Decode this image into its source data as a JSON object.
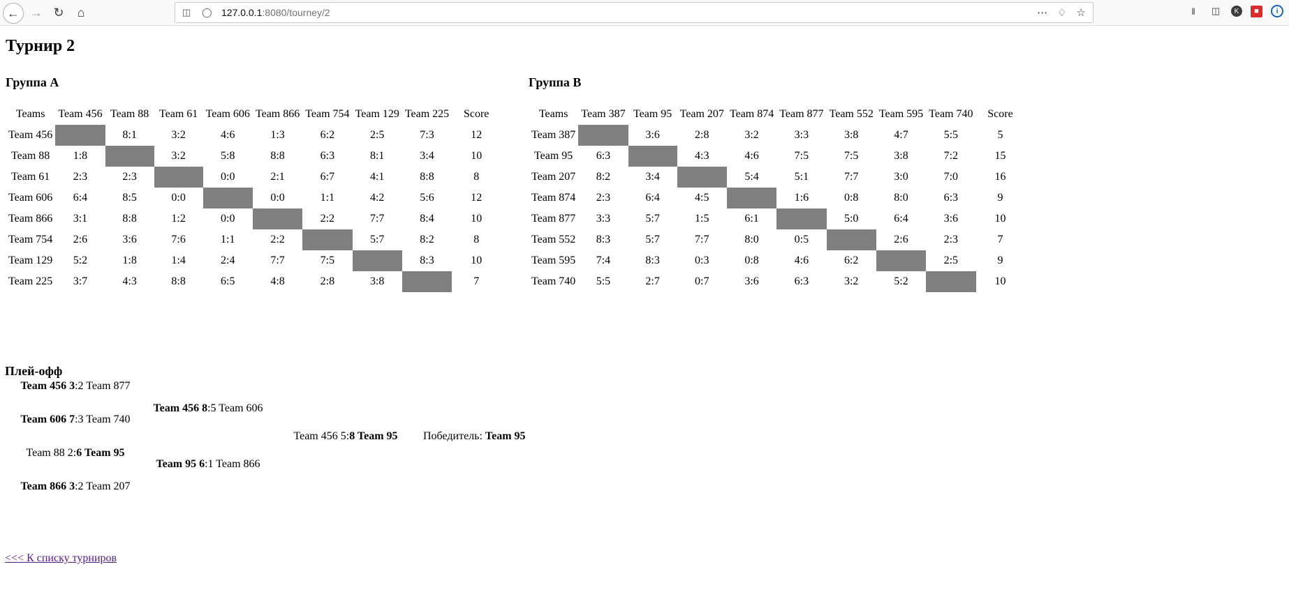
{
  "browser": {
    "url_host": "127.0.0.1",
    "url_rest": ":8080/tourney/2"
  },
  "page": {
    "title": "Турнир 2",
    "playoff_title": "Плей-офф",
    "back_link": "<<< К списку турниров"
  },
  "groups": [
    {
      "title": "Группа A",
      "header": [
        "Teams",
        "Team 456",
        "Team 88",
        "Team 61",
        "Team 606",
        "Team 866",
        "Team 754",
        "Team 129",
        "Team 225",
        "Score"
      ],
      "rows": [
        {
          "team": "Team 456",
          "cells": [
            "",
            "8:1",
            "3:2",
            "4:6",
            "1:3",
            "6:2",
            "2:5",
            "7:3"
          ],
          "score": "12"
        },
        {
          "team": "Team 88",
          "cells": [
            "1:8",
            "",
            "3:2",
            "5:8",
            "8:8",
            "6:3",
            "8:1",
            "3:4"
          ],
          "score": "10"
        },
        {
          "team": "Team 61",
          "cells": [
            "2:3",
            "2:3",
            "",
            "0:0",
            "2:1",
            "6:7",
            "4:1",
            "8:8"
          ],
          "score": "8"
        },
        {
          "team": "Team 606",
          "cells": [
            "6:4",
            "8:5",
            "0:0",
            "",
            "0:0",
            "1:1",
            "4:2",
            "5:6"
          ],
          "score": "12"
        },
        {
          "team": "Team 866",
          "cells": [
            "3:1",
            "8:8",
            "1:2",
            "0:0",
            "",
            "2:2",
            "7:7",
            "8:4"
          ],
          "score": "10"
        },
        {
          "team": "Team 754",
          "cells": [
            "2:6",
            "3:6",
            "7:6",
            "1:1",
            "2:2",
            "",
            "5:7",
            "8:2"
          ],
          "score": "8"
        },
        {
          "team": "Team 129",
          "cells": [
            "5:2",
            "1:8",
            "1:4",
            "2:4",
            "7:7",
            "7:5",
            "",
            "8:3"
          ],
          "score": "10"
        },
        {
          "team": "Team 225",
          "cells": [
            "3:7",
            "4:3",
            "8:8",
            "6:5",
            "4:8",
            "2:8",
            "3:8",
            ""
          ],
          "score": "7"
        }
      ]
    },
    {
      "title": "Группа B",
      "header": [
        "Teams",
        "Team 387",
        "Team 95",
        "Team 207",
        "Team 874",
        "Team 877",
        "Team 552",
        "Team 595",
        "Team 740",
        "Score"
      ],
      "rows": [
        {
          "team": "Team 387",
          "cells": [
            "",
            "3:6",
            "2:8",
            "3:2",
            "3:3",
            "3:8",
            "4:7",
            "5:5"
          ],
          "score": "5"
        },
        {
          "team": "Team 95",
          "cells": [
            "6:3",
            "",
            "4:3",
            "4:6",
            "7:5",
            "7:5",
            "3:8",
            "7:2"
          ],
          "score": "15"
        },
        {
          "team": "Team 207",
          "cells": [
            "8:2",
            "3:4",
            "",
            "5:4",
            "5:1",
            "7:7",
            "3:0",
            "7:0"
          ],
          "score": "16"
        },
        {
          "team": "Team 874",
          "cells": [
            "2:3",
            "6:4",
            "4:5",
            "",
            "1:6",
            "0:8",
            "8:0",
            "6:3"
          ],
          "score": "9"
        },
        {
          "team": "Team 877",
          "cells": [
            "3:3",
            "5:7",
            "1:5",
            "6:1",
            "",
            "5:0",
            "6:4",
            "3:6"
          ],
          "score": "10"
        },
        {
          "team": "Team 552",
          "cells": [
            "8:3",
            "5:7",
            "7:7",
            "8:0",
            "0:5",
            "",
            "2:6",
            "2:3"
          ],
          "score": "7"
        },
        {
          "team": "Team 595",
          "cells": [
            "7:4",
            "8:3",
            "0:3",
            "0:8",
            "4:6",
            "6:2",
            "",
            "2:5"
          ],
          "score": "9"
        },
        {
          "team": "Team 740",
          "cells": [
            "5:5",
            "2:7",
            "0:7",
            "3:6",
            "6:3",
            "3:2",
            "5:2",
            ""
          ],
          "score": "10"
        }
      ]
    }
  ],
  "playoff": {
    "matches": [
      {
        "t1": "Team 456",
        "s1": "3",
        "s2": "2",
        "t2": "Team 877",
        "winner": 1
      },
      {
        "t1": "Team 606",
        "s1": "7",
        "s2": "3",
        "t2": "Team 740",
        "winner": 1
      },
      {
        "t1": "Team 88",
        "s1": "2",
        "s2": "6",
        "t2": "Team 95",
        "winner": 2
      },
      {
        "t1": "Team 866",
        "s1": "3",
        "s2": "2",
        "t2": "Team 207",
        "winner": 1
      },
      {
        "t1": "Team 456",
        "s1": "8",
        "s2": "5",
        "t2": "Team 606",
        "winner": 1
      },
      {
        "t1": "Team 95",
        "s1": "6",
        "s2": "1",
        "t2": "Team 866",
        "winner": 1
      },
      {
        "t1": "Team 456",
        "s1": "5",
        "s2": "8",
        "t2": "Team 95",
        "winner": 2
      }
    ],
    "winner_label": "Победитель:",
    "winner": "Team 95"
  }
}
